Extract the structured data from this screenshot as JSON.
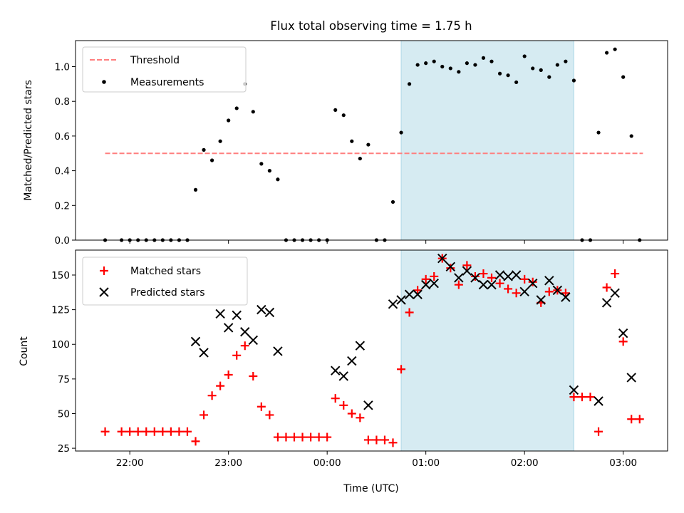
{
  "chart_data": [
    {
      "type": "scatter",
      "title": "Flux total observing time = 1.75 h",
      "ylabel": "Matched/Predicted stars",
      "xlabel": "",
      "xlim": [
        "21:27",
        "03:27"
      ],
      "ylim": [
        0,
        1.15
      ],
      "xticks": [
        "22:00",
        "23:00",
        "00:00",
        "01:00",
        "02:00",
        "03:00"
      ],
      "yticks": [
        0.0,
        0.2,
        0.4,
        0.6,
        0.8,
        1.0
      ],
      "ytick_labels": [
        "0.0",
        "0.2",
        "0.4",
        "0.6",
        "0.8",
        "1.0"
      ],
      "grid": false,
      "legend": "top-left",
      "shaded_interval": [
        "00:45",
        "02:30"
      ],
      "threshold": {
        "name": "Threshold",
        "value": 0.5,
        "x_range": [
          "21:45",
          "03:12"
        ],
        "color": "#ff7f7f",
        "style": "dashed"
      },
      "series": [
        {
          "name": "Measurements",
          "color": "#000000",
          "marker": "dot",
          "x": [
            "21:45",
            "21:55",
            "22:00",
            "22:05",
            "22:10",
            "22:15",
            "22:20",
            "22:25",
            "22:30",
            "22:35",
            "22:40",
            "22:45",
            "22:50",
            "22:55",
            "23:00",
            "23:05",
            "23:10",
            "23:15",
            "23:20",
            "23:25",
            "23:30",
            "23:35",
            "23:40",
            "23:45",
            "23:50",
            "23:55",
            "00:00",
            "00:05",
            "00:10",
            "00:15",
            "00:20",
            "00:25",
            "00:30",
            "00:35",
            "00:40",
            "00:45",
            "00:50",
            "00:55",
            "01:00",
            "01:05",
            "01:10",
            "01:15",
            "01:20",
            "01:25",
            "01:30",
            "01:35",
            "01:40",
            "01:45",
            "01:50",
            "01:55",
            "02:00",
            "02:05",
            "02:10",
            "02:15",
            "02:20",
            "02:25",
            "02:30",
            "02:35",
            "02:40",
            "02:45",
            "02:50",
            "02:55",
            "03:00",
            "03:05",
            "03:10"
          ],
          "y": [
            0.0,
            0.0,
            0.0,
            0.0,
            0.0,
            0.0,
            0.0,
            0.0,
            0.0,
            0.0,
            0.29,
            0.52,
            0.46,
            0.57,
            0.69,
            0.76,
            0.9,
            0.74,
            0.44,
            0.4,
            0.35,
            0.0,
            0.0,
            0.0,
            0.0,
            0.0,
            0.0,
            0.75,
            0.72,
            0.57,
            0.47,
            0.55,
            0.0,
            0.0,
            0.22,
            0.62,
            0.9,
            1.01,
            1.02,
            1.03,
            1.0,
            0.99,
            0.97,
            1.02,
            1.01,
            1.05,
            1.03,
            0.96,
            0.95,
            0.91,
            1.06,
            0.99,
            0.98,
            0.94,
            1.01,
            1.03,
            0.92,
            0.0,
            0.0,
            0.62,
            1.08,
            1.1,
            0.94,
            0.6,
            0.0
          ]
        }
      ]
    },
    {
      "type": "scatter",
      "title": "",
      "ylabel": "Count",
      "xlabel": "Time (UTC)",
      "xlim": [
        "21:27",
        "03:27"
      ],
      "ylim": [
        23,
        168
      ],
      "xticks": [
        "22:00",
        "23:00",
        "00:00",
        "01:00",
        "02:00",
        "03:00"
      ],
      "yticks": [
        25,
        50,
        75,
        100,
        125,
        150
      ],
      "ytick_labels": [
        "25",
        "50",
        "75",
        "100",
        "125",
        "150"
      ],
      "grid": false,
      "legend": "top-left",
      "shaded_interval": [
        "00:45",
        "02:30"
      ],
      "series": [
        {
          "name": "Matched stars",
          "color": "#ff0000",
          "marker": "plus",
          "x": [
            "21:45",
            "21:55",
            "22:00",
            "22:05",
            "22:10",
            "22:15",
            "22:20",
            "22:25",
            "22:30",
            "22:35",
            "22:40",
            "22:45",
            "22:50",
            "22:55",
            "23:00",
            "23:05",
            "23:10",
            "23:15",
            "23:20",
            "23:25",
            "23:30",
            "23:35",
            "23:40",
            "23:45",
            "23:50",
            "23:55",
            "00:00",
            "00:05",
            "00:10",
            "00:15",
            "00:20",
            "00:25",
            "00:30",
            "00:35",
            "00:40",
            "00:45",
            "00:50",
            "00:55",
            "01:00",
            "01:05",
            "01:10",
            "01:15",
            "01:20",
            "01:25",
            "01:30",
            "01:35",
            "01:40",
            "01:45",
            "01:50",
            "01:55",
            "02:00",
            "02:05",
            "02:10",
            "02:15",
            "02:20",
            "02:25",
            "02:30",
            "02:35",
            "02:40",
            "02:45",
            "02:50",
            "02:55",
            "03:00",
            "03:05",
            "03:10"
          ],
          "y": [
            37,
            37,
            37,
            37,
            37,
            37,
            37,
            37,
            37,
            37,
            30,
            49,
            63,
            70,
            78,
            92,
            99,
            77,
            55,
            49,
            33,
            33,
            33,
            33,
            33,
            33,
            33,
            61,
            56,
            50,
            47,
            31,
            31,
            31,
            29,
            82,
            123,
            139,
            147,
            149,
            162,
            155,
            143,
            157,
            149,
            151,
            148,
            144,
            140,
            137,
            147,
            145,
            130,
            138,
            139,
            137,
            62,
            62,
            62,
            37,
            141,
            151,
            102,
            46,
            46
          ]
        },
        {
          "name": "Predicted stars",
          "color": "#000000",
          "marker": "x",
          "x": [
            "22:40",
            "22:45",
            "22:55",
            "23:00",
            "23:05",
            "23:10",
            "23:15",
            "23:20",
            "23:25",
            "23:30",
            "00:05",
            "00:10",
            "00:15",
            "00:20",
            "00:25",
            "00:40",
            "00:45",
            "00:50",
            "00:55",
            "01:00",
            "01:05",
            "01:10",
            "01:15",
            "01:20",
            "01:25",
            "01:30",
            "01:35",
            "01:40",
            "01:45",
            "01:50",
            "01:55",
            "02:00",
            "02:05",
            "02:10",
            "02:15",
            "02:20",
            "02:25",
            "02:30",
            "02:45",
            "02:50",
            "02:55",
            "03:00",
            "03:05"
          ],
          "y": [
            102,
            94,
            122,
            112,
            121,
            109,
            103,
            125,
            123,
            95,
            81,
            77,
            88,
            99,
            56,
            129,
            132,
            136,
            136,
            143,
            144,
            162,
            156,
            148,
            153,
            148,
            143,
            143,
            150,
            149,
            150,
            138,
            144,
            132,
            146,
            139,
            134,
            67,
            59,
            130,
            137,
            108,
            76
          ]
        }
      ]
    }
  ]
}
